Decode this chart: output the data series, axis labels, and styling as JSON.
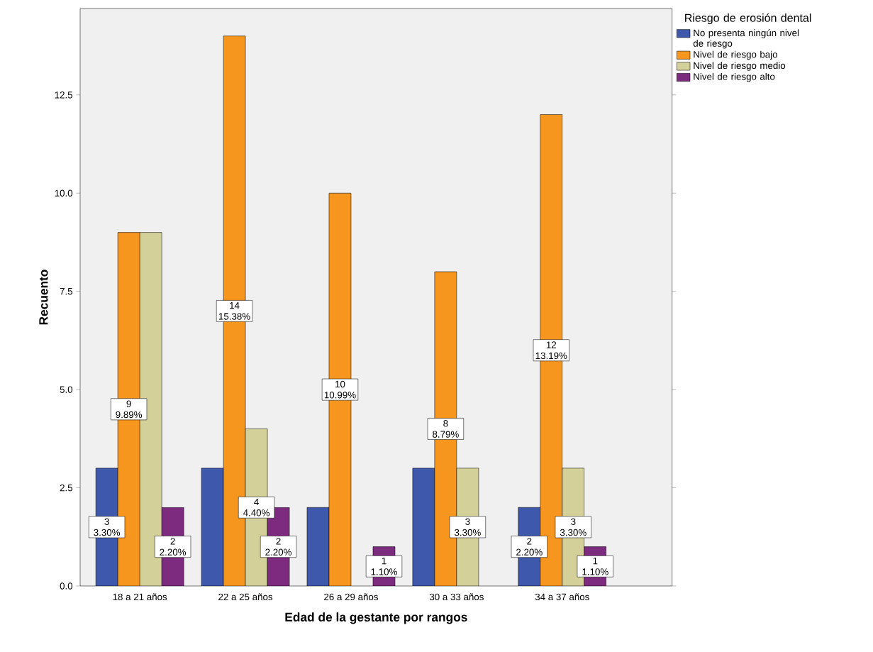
{
  "chart_data": {
    "type": "bar",
    "xlabel": "Edad de la gestante por rangos",
    "ylabel": "Recuento",
    "legend_title": "Riesgo de erosión dental",
    "legend": "top right",
    "categories": [
      "18 a 21 años",
      "22 a 25 años",
      "26 a 29 años",
      "30 a 33 años",
      "34 a 37 años"
    ],
    "ylim": [
      0,
      14.7
    ],
    "yticks": [
      {
        "value": 0,
        "label": "0.0"
      },
      {
        "value": 2.5,
        "label": "2.5"
      },
      {
        "value": 5,
        "label": "5.0"
      },
      {
        "value": 7.5,
        "label": "7.5"
      },
      {
        "value": 10,
        "label": "10.0"
      },
      {
        "value": 12.5,
        "label": "12.5"
      }
    ],
    "series": [
      {
        "name": "No presenta ningún nivel de riesgo",
        "color": "#3e58ac",
        "values": [
          3,
          3,
          2,
          3,
          2
        ],
        "value_labels": [
          "3 3.30%",
          null,
          null,
          null,
          "2 2.20%"
        ]
      },
      {
        "name": "Nivel de riesgo bajo",
        "color": "#f7961e",
        "values": [
          9,
          14,
          10,
          8,
          12
        ],
        "value_labels": [
          "9 9.89%",
          "14 15.38%",
          "10 10.99%",
          "8 8.79%",
          "12 13.19%"
        ]
      },
      {
        "name": "Nivel de riesgo medio",
        "color": "#d4d09a",
        "values": [
          9,
          4,
          null,
          3,
          3
        ],
        "value_labels": [
          null,
          "4 4.40%",
          null,
          "3 3.30%",
          "3 3.30%"
        ]
      },
      {
        "name": "Nivel de riesgo alto",
        "color": "#7d2b7f",
        "values": [
          2,
          2,
          1,
          null,
          1
        ],
        "value_labels": [
          "2 2.20%",
          "2 2.20%",
          "1 1.10%",
          null,
          "1 1.10%"
        ]
      }
    ]
  }
}
